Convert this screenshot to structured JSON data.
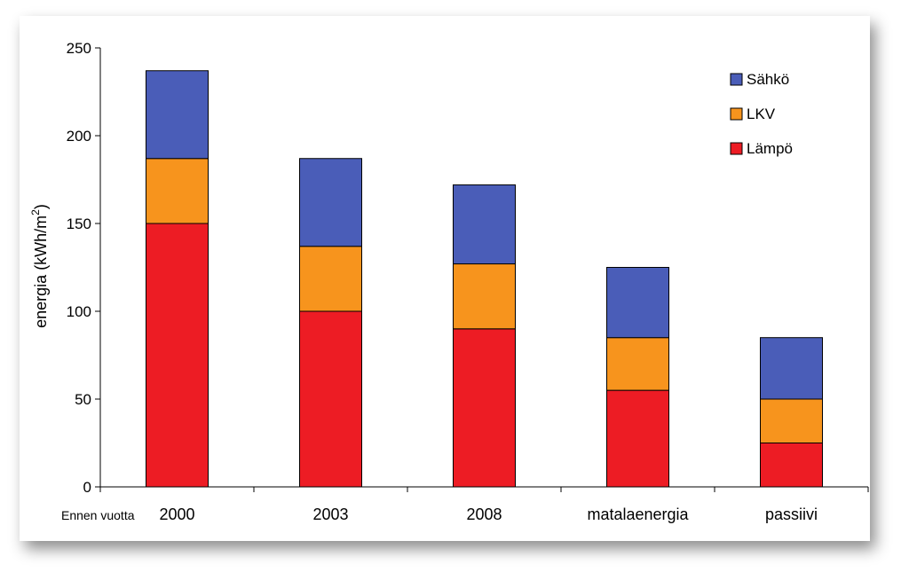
{
  "chart_data": {
    "type": "bar",
    "stacked": true,
    "categories": [
      "2000",
      "2003",
      "2008",
      "matalaenergia",
      "passiivi"
    ],
    "category_prefix": "Ennen vuotta",
    "series": [
      {
        "name": "Lämpö",
        "color": "#ED1C24",
        "values": [
          150,
          100,
          90,
          55,
          25
        ]
      },
      {
        "name": "LKV",
        "color": "#F7941D",
        "values": [
          37,
          37,
          37,
          30,
          25
        ]
      },
      {
        "name": "Sähkö",
        "color": "#4A5DB8",
        "values": [
          50,
          50,
          45,
          40,
          35
        ]
      }
    ],
    "ylabel": "energia (kWh/m",
    "ylabel_superscript": "2",
    "ylabel_suffix": ")",
    "ylim": [
      0,
      250
    ],
    "yticks": [
      "0",
      "50",
      "100",
      "150",
      "200",
      "250"
    ],
    "legend_position": "top-right",
    "grid": false
  }
}
